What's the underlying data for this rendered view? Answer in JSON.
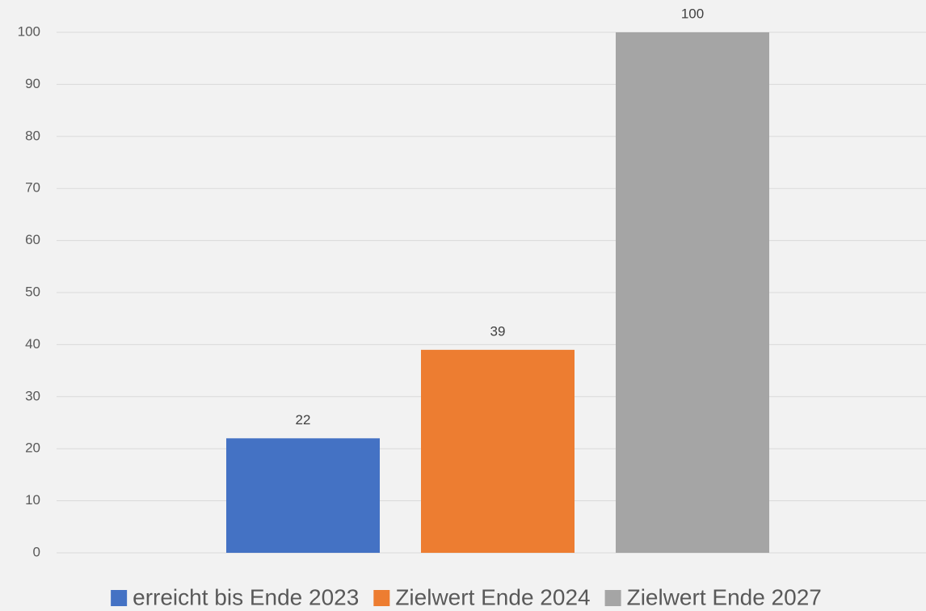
{
  "chart_data": {
    "type": "bar",
    "categories": [
      null
    ],
    "series": [
      {
        "name": "erreicht bis Ende 2023",
        "color": "#4472c4",
        "values": [
          22
        ]
      },
      {
        "name": "Zielwert Ende 2024",
        "color": "#ed7d31",
        "values": [
          39
        ]
      },
      {
        "name": "Zielwert Ende 2027",
        "color": "#a5a5a5",
        "values": [
          100
        ]
      }
    ],
    "ylim": [
      0,
      100
    ],
    "yticks": [
      0,
      10,
      20,
      30,
      40,
      50,
      60,
      70,
      80,
      90,
      100
    ],
    "grid": true,
    "legend": "bottom"
  }
}
